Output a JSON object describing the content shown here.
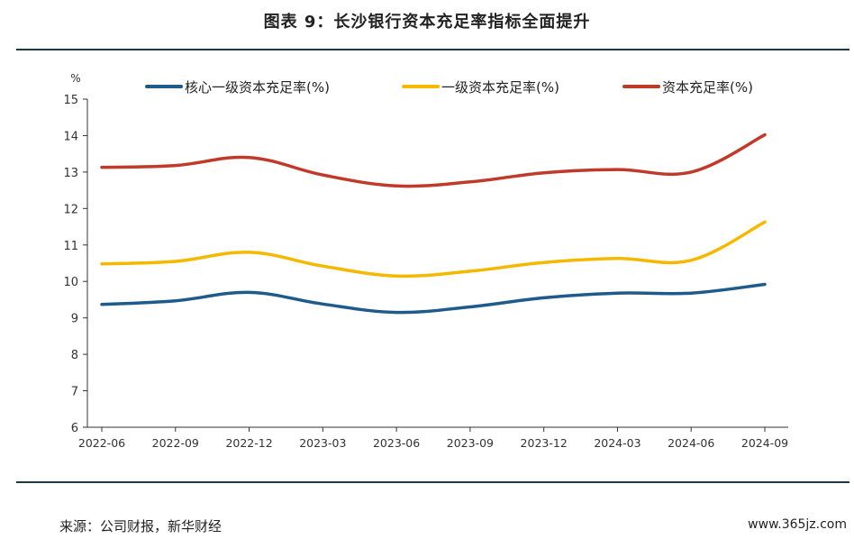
{
  "title": "图表 9：长沙银行资本充足率指标全面提升",
  "source": "来源：公司财报，新华财经",
  "watermark": "www.365jz.com",
  "chart_data": {
    "type": "line",
    "ylabel": "%",
    "ylim": [
      6,
      15
    ],
    "yticks": [
      6,
      7,
      8,
      9,
      10,
      11,
      12,
      13,
      14,
      15
    ],
    "grid": false,
    "legend": "top",
    "categories": [
      "2022-06",
      "2022-09",
      "2022-12",
      "2023-03",
      "2023-06",
      "2023-09",
      "2023-12",
      "2024-03",
      "2024-06",
      "2024-09"
    ],
    "series": [
      {
        "name": "核心一级资本充足率(%)",
        "color": "#1f5a8c",
        "values": [
          9.37,
          9.47,
          9.7,
          9.38,
          9.15,
          9.3,
          9.55,
          9.68,
          9.68,
          9.92
        ]
      },
      {
        "name": "一级资本充足率(%)",
        "color": "#f5b800",
        "values": [
          10.48,
          10.55,
          10.8,
          10.42,
          10.15,
          10.28,
          10.52,
          10.63,
          10.58,
          11.63
        ]
      },
      {
        "name": "资本充足率(%)",
        "color": "#c0392b",
        "values": [
          13.13,
          13.18,
          13.4,
          12.92,
          12.62,
          12.73,
          12.98,
          13.07,
          13.0,
          14.02
        ]
      }
    ]
  }
}
